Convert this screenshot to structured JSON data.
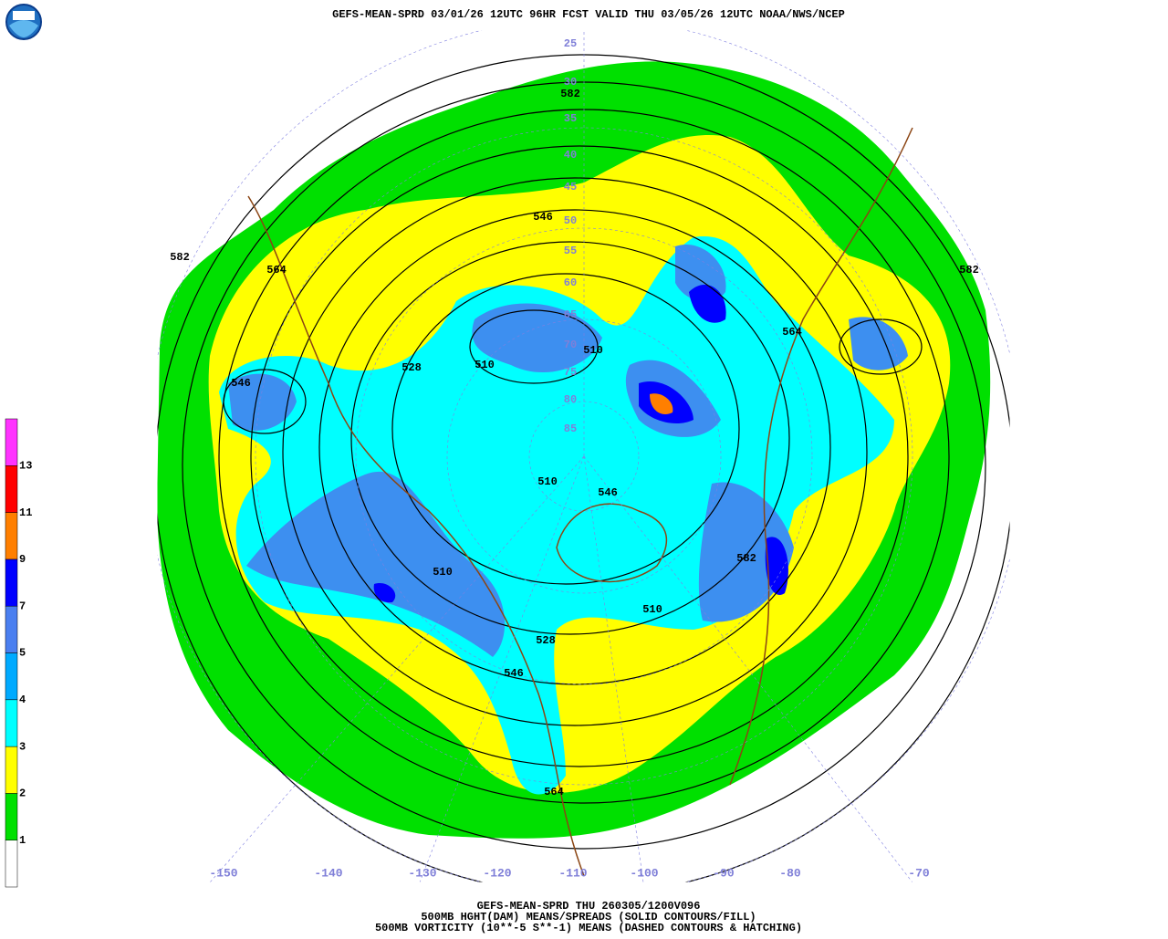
{
  "header": {
    "title": "GEFS-MEAN-SPRD 03/01/26 12UTC 96HR FCST VALID THU 03/05/26 12UTC NOAA/NWS/NCEP"
  },
  "footer": {
    "lines": [
      "GEFS-MEAN-SPRD THU 260305/1200V096",
      "500MB HGHT(DAM) MEANS/SPREADS (SOLID CONTOURS/FILL)",
      "500MB VORTICITY (10**-5 S**-1) MEANS (DASHED CONTOURS & HATCHING)"
    ]
  },
  "legend": {
    "levels": [
      1,
      2,
      3,
      4,
      5,
      7,
      9,
      11,
      13
    ],
    "colors": [
      "#ffffff",
      "#00e000",
      "#ffff00",
      "#00ffff",
      "#00aaff",
      "#4a7ff0",
      "#0000ff",
      "#ff7f00",
      "#ff0000",
      "#ff33ff"
    ]
  },
  "map": {
    "longitude_labels": [
      -150,
      -140,
      -130,
      -120,
      -110,
      -100,
      -90,
      -80,
      -70
    ],
    "latitude_labels": [
      25,
      30,
      35,
      40,
      45,
      50,
      55,
      60,
      65,
      70,
      75,
      80,
      85
    ],
    "contour_labels": [
      582,
      546,
      582,
      564,
      582,
      564,
      528,
      510,
      546,
      510,
      510,
      546,
      510,
      582,
      528,
      546,
      510,
      564
    ]
  }
}
